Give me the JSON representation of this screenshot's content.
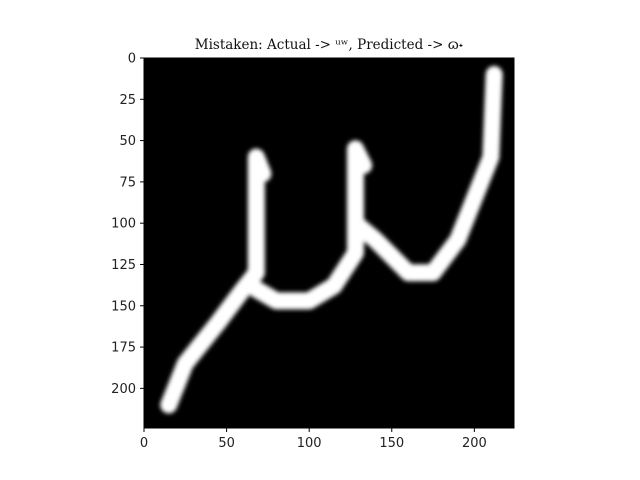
{
  "chart_data": {
    "type": "heatmap",
    "title": "Mistaken: Actual -> ᵘʷ, Predicted -> ɷ˖",
    "xlabel": "",
    "ylabel": "",
    "xlim": [
      0,
      224
    ],
    "ylim": [
      224,
      0
    ],
    "x_ticks": [
      0,
      50,
      100,
      150,
      200
    ],
    "y_ticks": [
      0,
      25,
      50,
      75,
      100,
      125,
      150,
      175,
      200
    ],
    "grid": false,
    "colormap": "grayscale",
    "background_value": 0,
    "stroke_value": 1,
    "image_description_strokes": [
      [
        [
          15,
          210
        ],
        [
          25,
          185
        ],
        [
          45,
          160
        ],
        [
          60,
          140
        ],
        [
          68,
          130
        ],
        [
          68,
          60
        ],
        [
          72,
          70
        ]
      ],
      [
        [
          68,
          140
        ],
        [
          80,
          147
        ],
        [
          100,
          147
        ],
        [
          115,
          138
        ],
        [
          128,
          118
        ],
        [
          128,
          55
        ],
        [
          133,
          65
        ]
      ],
      [
        [
          128,
          100
        ],
        [
          140,
          110
        ],
        [
          160,
          130
        ],
        [
          175,
          130
        ],
        [
          190,
          110
        ],
        [
          200,
          85
        ],
        [
          210,
          60
        ],
        [
          212,
          10
        ]
      ]
    ]
  }
}
